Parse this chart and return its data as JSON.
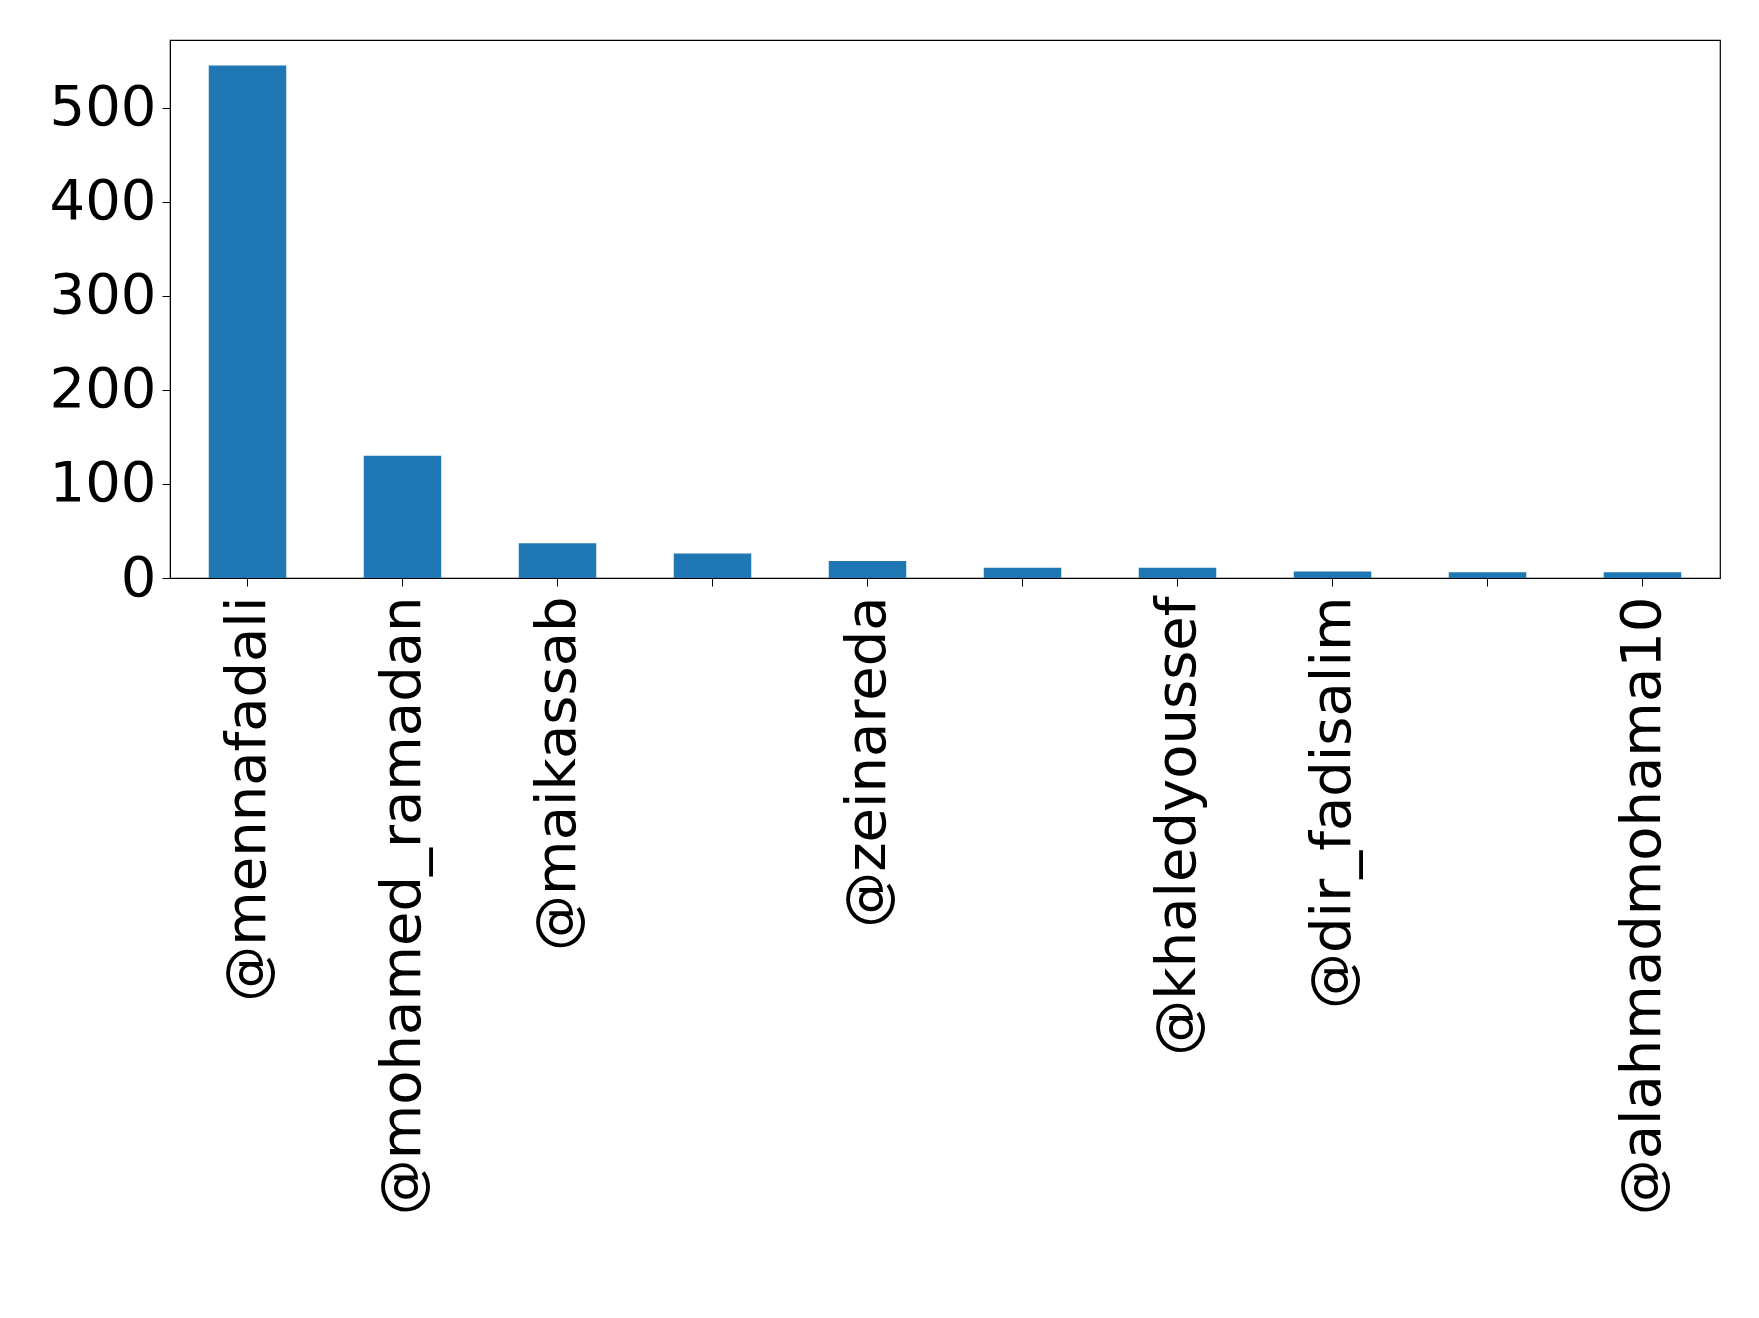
{
  "chart_data": {
    "type": "bar",
    "categories": [
      "@mennafadali",
      "@mohamed_ramadan",
      "@maikassab",
      null,
      "@zeinareda",
      null,
      "@khaledyoussef",
      "@dir_fadisalim",
      null,
      "@alahmadmohama10"
    ],
    "values": [
      545,
      130,
      37,
      26,
      18,
      11,
      11,
      7,
      6,
      6
    ],
    "color": "#1f77b4",
    "ylim": [
      0,
      572
    ],
    "yticks": [
      0,
      100,
      200,
      300,
      400,
      500
    ],
    "grid": false
  }
}
